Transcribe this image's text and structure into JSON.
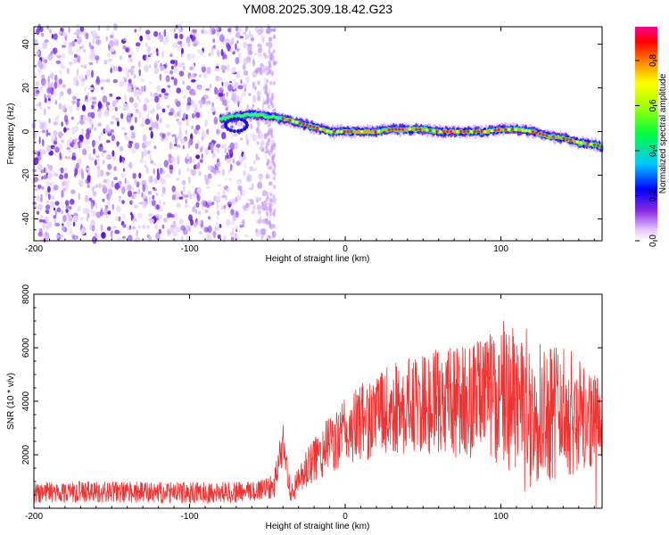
{
  "chart_data": [
    {
      "type": "heatmap",
      "title": "YM08.2025.309.18.42.G23",
      "xlabel": "Height of straight line (km)",
      "ylabel": "Frequency (Hz)",
      "xlim": [
        -200,
        165
      ],
      "ylim": [
        -50,
        48
      ],
      "xticks": [
        "-200",
        "-100",
        "0",
        "100"
      ],
      "yticks": [
        "40",
        "20",
        "0",
        "-20",
        "-40"
      ],
      "colorbar": {
        "label": "Normalized spectral amplitude",
        "range": [
          0.0,
          0.95
        ],
        "ticks": [
          "0.0",
          "0.2",
          "0.4",
          "0.6",
          "0.8"
        ]
      },
      "ridge": {
        "description": "dominant frequency track",
        "x": [
          -80,
          -70,
          -60,
          -50,
          -40,
          -30,
          -20,
          -10,
          0,
          10,
          20,
          30,
          40,
          50,
          60,
          70,
          80,
          90,
          100,
          110,
          120,
          130,
          140,
          150,
          160,
          165
        ],
        "freq": [
          6,
          7,
          8,
          7,
          6,
          4,
          2,
          0,
          0,
          0,
          0,
          1,
          1,
          1,
          0,
          0,
          0,
          0,
          1,
          1,
          0,
          -2,
          -3,
          -5,
          -6,
          -7
        ]
      }
    },
    {
      "type": "line",
      "xlabel": "Height of straight line (km)",
      "ylabel": "SNR (10 * v/v)",
      "xlim": [
        -200,
        165
      ],
      "ylim": [
        0,
        8000
      ],
      "xticks": [
        "-200",
        "-100",
        "0",
        "100"
      ],
      "yticks": [
        "8000",
        "6000",
        "4000",
        "2000"
      ],
      "series": [
        {
          "name": "SNR",
          "color": "#ee3333",
          "x": [
            -200,
            -180,
            -160,
            -140,
            -120,
            -100,
            -80,
            -60,
            -50,
            -45,
            -40,
            -35,
            -30,
            -20,
            -10,
            0,
            10,
            20,
            30,
            40,
            50,
            60,
            70,
            80,
            90,
            100,
            110,
            120,
            130,
            140,
            150,
            160,
            165
          ],
          "y": [
            600,
            620,
            620,
            600,
            580,
            580,
            600,
            620,
            800,
            1000,
            2500,
            500,
            1000,
            1800,
            2400,
            2800,
            3200,
            3500,
            3700,
            3800,
            3900,
            4000,
            4000,
            4050,
            4100,
            4100,
            4000,
            3900,
            3800,
            3600,
            3500,
            3300,
            3200
          ],
          "spread": [
            400,
            400,
            400,
            400,
            400,
            400,
            400,
            400,
            500,
            600,
            800,
            300,
            600,
            900,
            1100,
            1300,
            1500,
            1600,
            1700,
            1800,
            1900,
            2000,
            2100,
            2200,
            2400,
            2600,
            2800,
            2900,
            2800,
            2500,
            2200,
            1800,
            1500
          ]
        }
      ]
    }
  ]
}
